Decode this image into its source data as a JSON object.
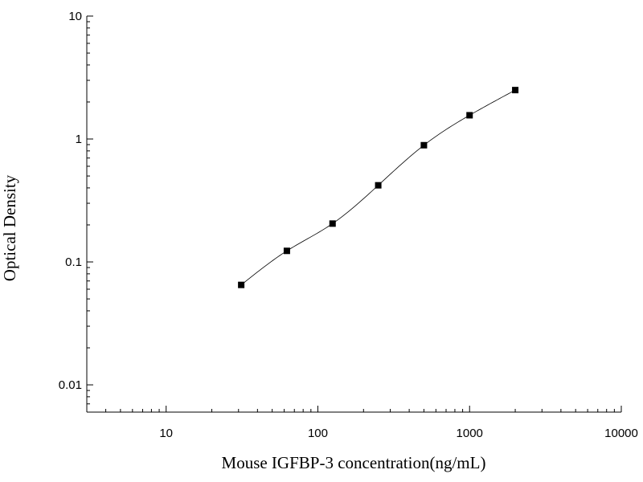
{
  "chart_data": {
    "type": "scatter",
    "title": "",
    "xlabel": "Mouse IGFBP-3 concentration(ng/mL)",
    "ylabel": "Optical Density",
    "x_scale": "log",
    "y_scale": "log",
    "xlim": [
      3,
      10000
    ],
    "ylim": [
      0.006,
      10
    ],
    "x_ticks": [
      10,
      100,
      1000,
      10000
    ],
    "x_tick_labels": [
      "10",
      "100",
      "1000",
      "10000"
    ],
    "y_ticks": [
      0.01,
      0.1,
      1,
      10
    ],
    "y_tick_labels": [
      "0.01",
      "0.1",
      "1",
      "10"
    ],
    "grid": false,
    "legend": "none",
    "series": [
      {
        "points": [
          {
            "x": 31.25,
            "y": 0.065
          },
          {
            "x": 62.5,
            "y": 0.123
          },
          {
            "x": 125,
            "y": 0.205
          },
          {
            "x": 250,
            "y": 0.42
          },
          {
            "x": 500,
            "y": 0.89
          },
          {
            "x": 1000,
            "y": 1.56
          },
          {
            "x": 2000,
            "y": 2.5
          }
        ],
        "marker": "square",
        "fit_curve": true,
        "color": "#000000"
      }
    ]
  }
}
